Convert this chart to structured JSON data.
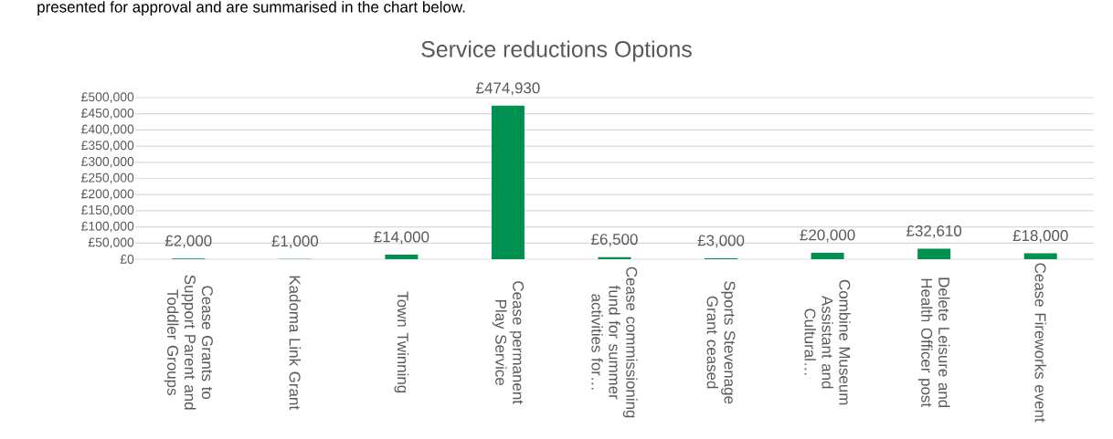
{
  "chart_data": {
    "type": "bar",
    "title": "Service reductions Options",
    "annotations": [
      "presented for approval and are summarised in the chart below."
    ],
    "categories": [
      "Cease Grants to Support Parent and Toddler Groups",
      "Kadoma Link Grant",
      "Town Twinning",
      "Cease permanent Play Service",
      "Cease commissioning fund for summer activities for…",
      "Sports Stevenage Grant ceased",
      "Combine Museum Assistant and Cultural…",
      "Delete Leisure and Health Officer post",
      "Cease Fireworks event"
    ],
    "values": [
      2000,
      1000,
      14000,
      474930,
      6500,
      3000,
      20000,
      32610,
      18000
    ],
    "value_labels": [
      "£2,000",
      "£1,000",
      "£14,000",
      "£474,930",
      "£6,500",
      "£3,000",
      "£20,000",
      "£32,610",
      "£18,000"
    ],
    "color": "#009150",
    "ylim": [
      0,
      500000
    ],
    "yticks": [
      {
        "value": 0,
        "label": "£0"
      },
      {
        "value": 50000,
        "label": "£50,000"
      },
      {
        "value": 100000,
        "label": "£100,000"
      },
      {
        "value": 150000,
        "label": "£150,000"
      },
      {
        "value": 200000,
        "label": "£200,000"
      },
      {
        "value": 250000,
        "label": "£250,000"
      },
      {
        "value": 300000,
        "label": "£300,000"
      },
      {
        "value": 350000,
        "label": "£350,000"
      },
      {
        "value": 400000,
        "label": "£400,000"
      },
      {
        "value": 450000,
        "label": "£450,000"
      },
      {
        "value": 500000,
        "label": "£500,000"
      }
    ],
    "grid": "y"
  }
}
